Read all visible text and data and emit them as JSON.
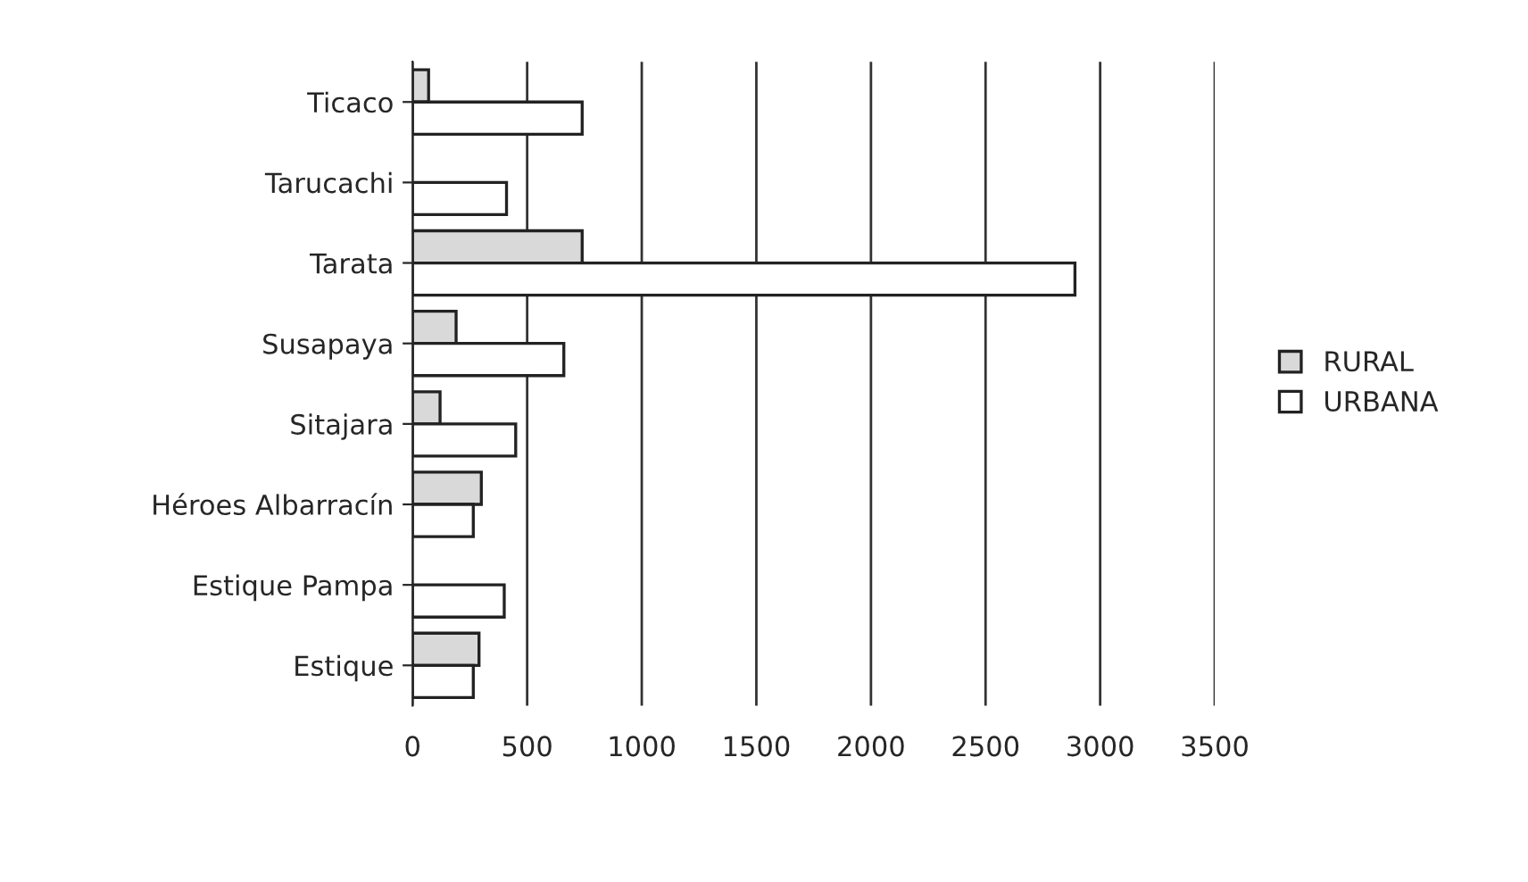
{
  "chart_data": {
    "type": "bar",
    "orientation": "horizontal",
    "categories": [
      "Ticaco",
      "Tarucachi",
      "Tarata",
      "Susapaya",
      "Sitajara",
      "Héroes Albarracín",
      "Estique Pampa",
      "Estique"
    ],
    "series": [
      {
        "name": "RURAL",
        "color": "#d9d9d9",
        "values": [
          70,
          null,
          740,
          190,
          120,
          300,
          null,
          290
        ]
      },
      {
        "name": "URBANA",
        "color": "#ffffff",
        "values": [
          740,
          410,
          2890,
          660,
          450,
          265,
          400,
          265
        ]
      }
    ],
    "xlim": [
      0,
      3500
    ],
    "xticks": [
      0,
      500,
      1000,
      1500,
      2000,
      2500,
      3000,
      3500
    ],
    "grid": "x",
    "legend": "right"
  }
}
